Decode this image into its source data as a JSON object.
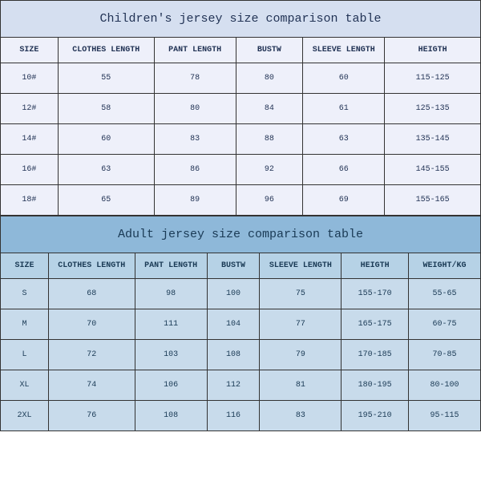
{
  "children": {
    "title": "Children's jersey size comparison table",
    "columns": [
      "SIZE",
      "CLOTHES LENGTH",
      "PANT LENGTH",
      "BUSTW",
      "SLEEVE LENGTH",
      "HEIGTH"
    ],
    "col_widths": [
      "12%",
      "20%",
      "17%",
      "14%",
      "17%",
      "20%"
    ],
    "rows": [
      [
        "10#",
        "55",
        "78",
        "80",
        "60",
        "115-125"
      ],
      [
        "12#",
        "58",
        "80",
        "84",
        "61",
        "125-135"
      ],
      [
        "14#",
        "60",
        "83",
        "88",
        "63",
        "135-145"
      ],
      [
        "16#",
        "63",
        "86",
        "92",
        "66",
        "145-155"
      ],
      [
        "18#",
        "65",
        "89",
        "96",
        "69",
        "155-165"
      ]
    ],
    "title_bg": "#d5dff0",
    "header_bg": "#eef0fa",
    "row_bg": "#eef0fa",
    "text_color": "#223355",
    "border_color": "#333333"
  },
  "adult": {
    "title": "Adult jersey size comparison table",
    "columns": [
      "SIZE",
      "CLOTHES LENGTH",
      "PANT LENGTH",
      "BUSTW",
      "SLEEVE LENGTH",
      "HEIGTH",
      "WEIGHT/KG"
    ],
    "col_widths": [
      "10%",
      "18%",
      "15%",
      "11%",
      "17%",
      "14%",
      "15%"
    ],
    "rows": [
      [
        "S",
        "68",
        "98",
        "100",
        "75",
        "155-170",
        "55-65"
      ],
      [
        "M",
        "70",
        "111",
        "104",
        "77",
        "165-175",
        "60-75"
      ],
      [
        "L",
        "72",
        "103",
        "108",
        "79",
        "170-185",
        "70-85"
      ],
      [
        "XL",
        "74",
        "106",
        "112",
        "81",
        "180-195",
        "80-100"
      ],
      [
        "2XL",
        "76",
        "108",
        "116",
        "83",
        "195-210",
        "95-115"
      ]
    ],
    "title_bg": "#8eb8d9",
    "header_bg": "#b6d2e6",
    "row_bg": "#c8dbeb",
    "text_color": "#1a3a55",
    "border_color": "#333333"
  }
}
